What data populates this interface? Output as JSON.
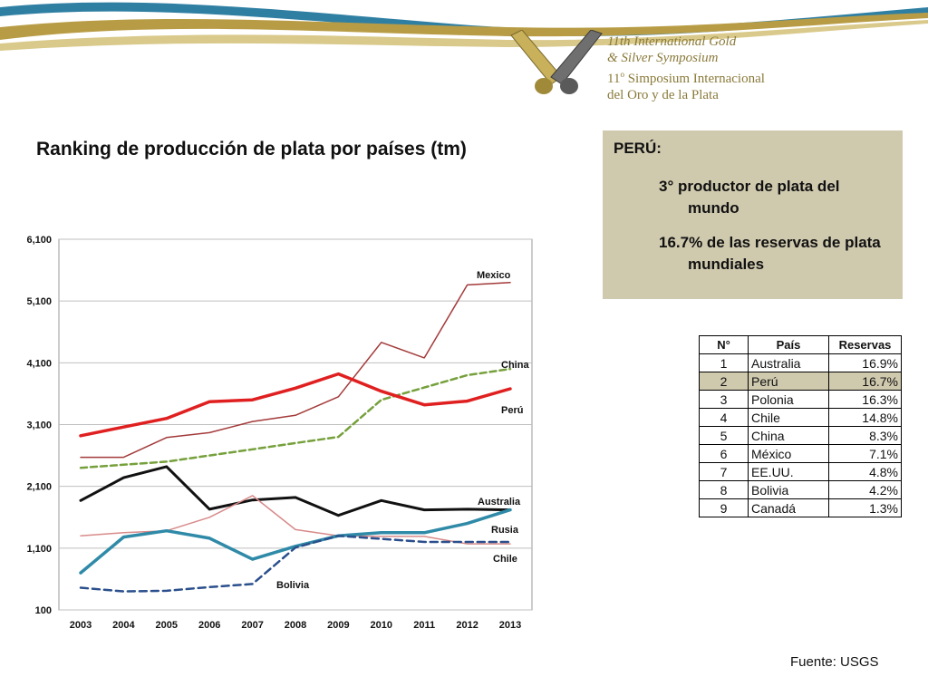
{
  "symposium": {
    "line1": "11th International Gold",
    "line2": "& Silver Symposium",
    "line3_num": "11",
    "line3_sup": "o",
    "line3_rest": " Simposium Internacional",
    "line4": "del Oro y de la Plata"
  },
  "colors": {
    "gold": "#b89c45",
    "teal": "#2f7fa3",
    "panel": "#cfc9ae"
  },
  "title": "Ranking de producción de plata por países (tm)",
  "info": {
    "heading": "PERÚ:",
    "point1_a": "3° productor de plata del",
    "point1_b": "mundo",
    "point2_a": "16.7% de las reservas de plata",
    "point2_b": "mundiales"
  },
  "reserves_table": {
    "headers": [
      "N°",
      "País",
      "Reservas"
    ],
    "rows": [
      [
        "1",
        "Australia",
        "16.9%"
      ],
      [
        "2",
        "Perú",
        "16.7%"
      ],
      [
        "3",
        "Polonia",
        "16.3%"
      ],
      [
        "4",
        "Chile",
        "14.8%"
      ],
      [
        "5",
        "China",
        "8.3%"
      ],
      [
        "6",
        "México",
        "7.1%"
      ],
      [
        "7",
        "EE.UU.",
        "4.8%"
      ],
      [
        "8",
        "Bolivia",
        "4.2%"
      ],
      [
        "9",
        "Canadá",
        "1.3%"
      ]
    ],
    "highlight_row": 1
  },
  "source": "Fuente: USGS",
  "chart_data": {
    "type": "line",
    "title": "Ranking de producción de plata por países (tm)",
    "x": [
      "2003",
      "2004",
      "2005",
      "2006",
      "2007",
      "2008",
      "2009",
      "2010",
      "2011",
      "2012",
      "2013"
    ],
    "ylim": [
      100,
      6100
    ],
    "yticks": [
      "100",
      "1,100",
      "2,100",
      "3,100",
      "4,100",
      "5,100",
      "6,100"
    ],
    "grid": true,
    "series": [
      {
        "name": "Mexico",
        "color": "#a43a3a",
        "width": 1.5,
        "dash": "",
        "values": [
          2570,
          2570,
          2890,
          2970,
          3150,
          3250,
          3550,
          4430,
          4180,
          5360,
          5400
        ]
      },
      {
        "name": "China",
        "color": "#76a03c",
        "width": 2.5,
        "dash": "7,4",
        "values": [
          2400,
          2450,
          2500,
          2600,
          2700,
          2800,
          2900,
          3500,
          3700,
          3900,
          4000
        ]
      },
      {
        "name": "Perú",
        "color": "#e02020",
        "width": 3.5,
        "dash": "",
        "values": [
          2920,
          3060,
          3200,
          3470,
          3500,
          3690,
          3920,
          3640,
          3420,
          3480,
          3680
        ]
      },
      {
        "name": "Australia",
        "color": "#111111",
        "width": 3,
        "dash": "",
        "values": [
          1870,
          2240,
          2420,
          1730,
          1880,
          1920,
          1630,
          1870,
          1720,
          1730,
          1720
        ]
      },
      {
        "name": "Rusia",
        "color": "#d88a8a",
        "width": 1.5,
        "dash": "",
        "values": [
          1300,
          1350,
          1380,
          1600,
          1950,
          1400,
          1300,
          1290,
          1290,
          1170,
          1170
        ]
      },
      {
        "name": "Chile",
        "color": "#2f8aa8",
        "width": 3.5,
        "dash": "",
        "values": [
          700,
          1280,
          1380,
          1260,
          920,
          1130,
          1300,
          1350,
          1350,
          1500,
          1720
        ]
      },
      {
        "name": "Bolivia",
        "color": "#2a4f8c",
        "width": 2.5,
        "dash": "8,5",
        "values": [
          460,
          400,
          410,
          470,
          520,
          1110,
          1300,
          1250,
          1200,
          1200,
          1200
        ]
      }
    ],
    "labels": [
      {
        "text": "Mexico",
        "series": "Mexico"
      },
      {
        "text": "China",
        "series": "China"
      },
      {
        "text": "Perú",
        "series": "Perú"
      },
      {
        "text": "Australia",
        "series": "Australia"
      },
      {
        "text": "Rusia",
        "series": "Rusia"
      },
      {
        "text": "Chile",
        "series": "Chile"
      },
      {
        "text": "Bolivia",
        "series": "Bolivia"
      }
    ]
  }
}
